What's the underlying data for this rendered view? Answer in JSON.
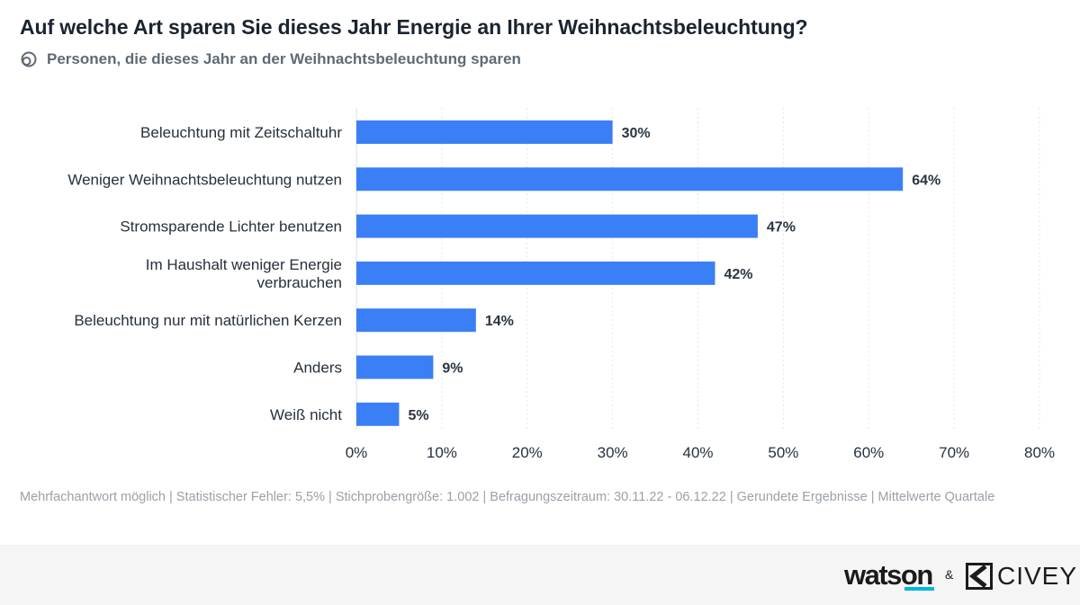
{
  "header": {
    "title": "Auf welche Art sparen Sie dieses Jahr Energie an Ihrer Weihnachtsbeleuchtung?",
    "subtitle": "Personen, die dieses Jahr an der Weihnachtsbeleuchtung sparen",
    "subtitle_icon": "audience-icon"
  },
  "chart_data": {
    "type": "bar",
    "orientation": "horizontal",
    "title": "Auf welche Art sparen Sie dieses Jahr Energie an Ihrer Weihnachtsbeleuchtung?",
    "categories": [
      [
        "Beleuchtung mit Zeitschaltuhr"
      ],
      [
        "Weniger Weihnachtsbeleuchtung nutzen"
      ],
      [
        "Stromsparende Lichter benutzen"
      ],
      [
        "Im Haushalt weniger Energie",
        "verbrauchen"
      ],
      [
        "Beleuchtung nur mit natürlichen Kerzen"
      ],
      [
        "Anders"
      ],
      [
        "Weiß nicht"
      ]
    ],
    "values": [
      30,
      64,
      47,
      42,
      14,
      9,
      5
    ],
    "value_labels": [
      "30%",
      "64%",
      "47%",
      "42%",
      "14%",
      "9%",
      "5%"
    ],
    "xlim": [
      0,
      80
    ],
    "ticks": [
      0,
      10,
      20,
      30,
      40,
      50,
      60,
      70,
      80
    ],
    "tick_labels": [
      "0%",
      "10%",
      "20%",
      "30%",
      "40%",
      "50%",
      "60%",
      "70%",
      "80%"
    ],
    "grid": true,
    "bar_color": "#3a7ff6"
  },
  "footnote": "Mehrfachantwort möglich | Statistischer Fehler: 5,5% | Stichprobengröße: 1.002 | Befragungszeitraum: 30.11.22 - 06.12.22 | Gerundete Ergebnisse | Mittelwerte Quartale",
  "footer": {
    "brand1": "watson",
    "separator": "&",
    "brand2": "CIVEY"
  }
}
